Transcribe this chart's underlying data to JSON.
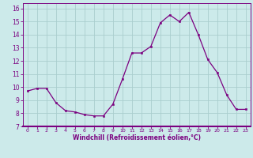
{
  "x": [
    0,
    1,
    2,
    3,
    4,
    5,
    6,
    7,
    8,
    9,
    10,
    11,
    12,
    13,
    14,
    15,
    16,
    17,
    18,
    19,
    20,
    21,
    22,
    23
  ],
  "y": [
    9.7,
    9.9,
    9.9,
    8.8,
    8.2,
    8.1,
    7.9,
    7.8,
    7.8,
    8.7,
    10.6,
    12.6,
    12.6,
    13.1,
    14.9,
    15.5,
    15.0,
    15.7,
    14.0,
    12.1,
    11.1,
    9.4,
    8.3,
    8.3
  ],
  "line_color": "#7b0080",
  "marker_color": "#7b0080",
  "bg_color": "#cceaea",
  "grid_color": "#aacece",
  "xlabel": "Windchill (Refroidissement éolien,°C)",
  "xlim": [
    -0.5,
    23.5
  ],
  "ylim": [
    7,
    16.4
  ],
  "yticks": [
    7,
    8,
    9,
    10,
    11,
    12,
    13,
    14,
    15,
    16
  ],
  "xticks": [
    0,
    1,
    2,
    3,
    4,
    5,
    6,
    7,
    8,
    9,
    10,
    11,
    12,
    13,
    14,
    15,
    16,
    17,
    18,
    19,
    20,
    21,
    22,
    23
  ]
}
